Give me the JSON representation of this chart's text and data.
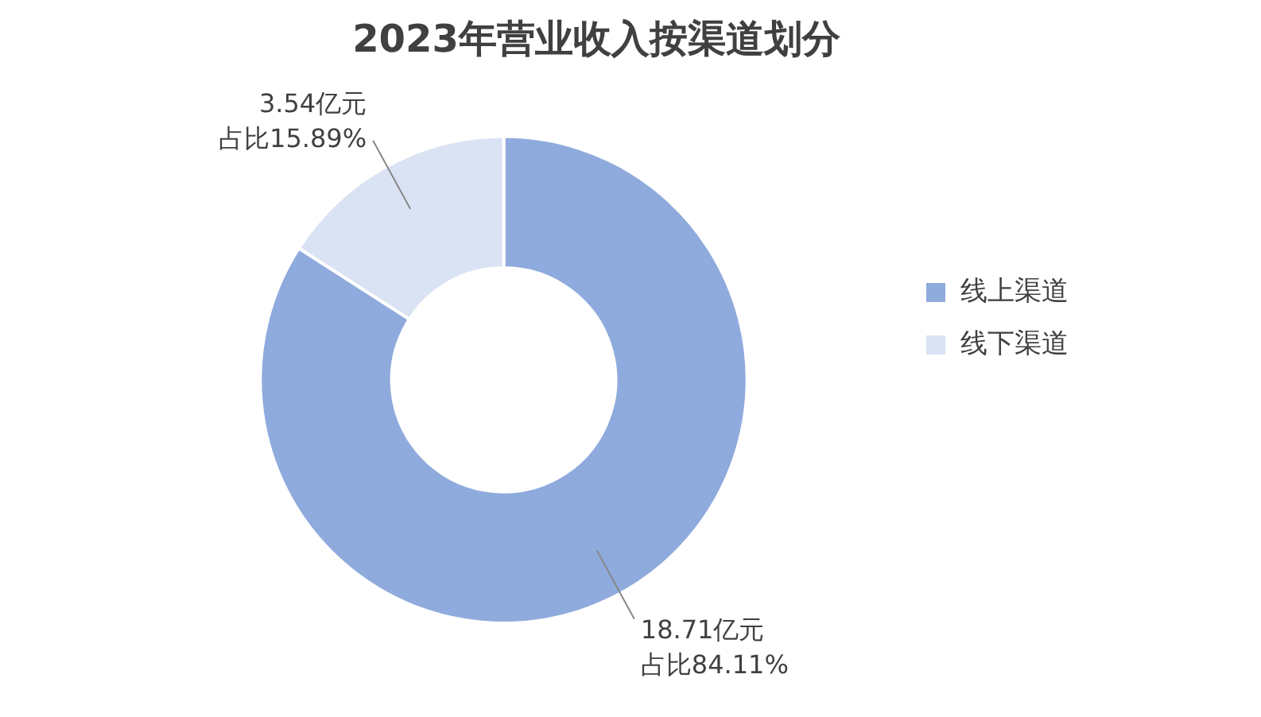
{
  "chart_data": {
    "type": "donut",
    "title": "2023年营业收入按渠道划分",
    "categories": [
      "线上渠道",
      "线下渠道"
    ],
    "values": [
      18.71,
      3.54
    ],
    "colors": [
      "#8faadc",
      "#dae3f3"
    ],
    "value_labels": [
      "18.71亿元占比84.11%",
      "3.54亿元占比15.89%"
    ],
    "legend": "right"
  }
}
